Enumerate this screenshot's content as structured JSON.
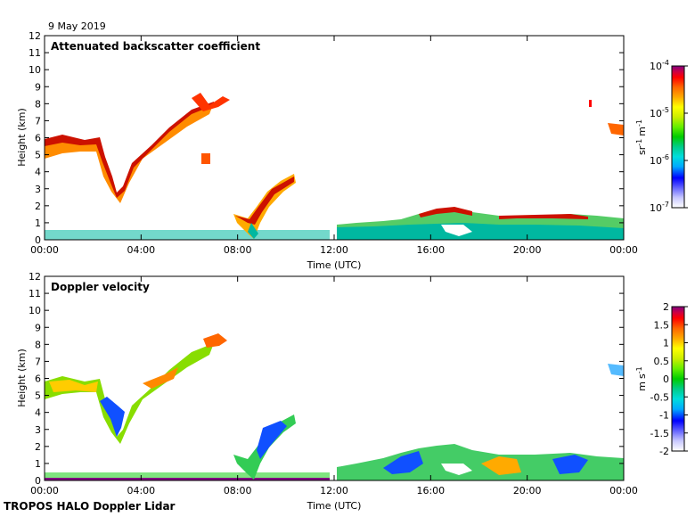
{
  "date_label": "9 May 2019",
  "footer_label": "TROPOS HALO Doppler Lidar",
  "colors": {
    "axis": "#000000",
    "background": "#ffffff"
  },
  "chart_data": [
    {
      "type": "heatmap",
      "title": "Attenuated backscatter coefficient",
      "xlabel": "Time (UTC)",
      "ylabel": "Height (km)",
      "x_ticks": [
        "00:00",
        "04:00",
        "08:00",
        "12:00",
        "16:00",
        "20:00",
        "00:00"
      ],
      "xlim_hours": [
        0,
        24
      ],
      "ylim": [
        0,
        12
      ],
      "y_ticks": [
        "0",
        "1",
        "2",
        "3",
        "4",
        "5",
        "6",
        "7",
        "8",
        "9",
        "10",
        "11",
        "12"
      ],
      "colorbar": {
        "scale": "log",
        "range": [
          1e-07,
          0.0001
        ],
        "tick_mantissa": [
          "10",
          "10",
          "10",
          "10"
        ],
        "tick_exponent": [
          "-7",
          "-6",
          "-5",
          "-4"
        ],
        "unit_main": [
          "sr",
          "m"
        ],
        "unit_sup": [
          "-1",
          "-1"
        ],
        "colors": [
          "#ffffff",
          "#c8c8ff",
          "#6464ff",
          "#0000ff",
          "#00aaff",
          "#00dddd",
          "#00cc88",
          "#00cc00",
          "#66ee00",
          "#ccee00",
          "#ffff00",
          "#ffaa00",
          "#ff6600",
          "#ff0000",
          "#cc0044",
          "#800080"
        ]
      },
      "features": [
        {
          "name": "elevated layer",
          "t": [
            0.0,
            0.5,
            1.0,
            2.0,
            2.5,
            3.0,
            3.5,
            4.0,
            5.0,
            6.0,
            7.0,
            7.5
          ],
          "h": [
            5.8,
            5.7,
            5.5,
            5.5,
            4.5,
            3.0,
            3.5,
            5.0,
            6.0,
            7.0,
            7.8,
            8.4
          ]
        },
        {
          "name": "late aerosol",
          "t": [
            8.3,
            9.0,
            9.5,
            10.0,
            10.3
          ],
          "h": [
            1.2,
            0.8,
            2.0,
            3.0,
            3.6
          ]
        },
        {
          "name": "boundary layer",
          "t": [
            12.0,
            14.0,
            16.0,
            17.0,
            18.0,
            20.0,
            22.0,
            24.0
          ],
          "h": [
            1.0,
            1.3,
            1.6,
            1.9,
            1.5,
            1.4,
            1.5,
            1.2
          ]
        }
      ]
    },
    {
      "type": "heatmap",
      "title": "Doppler velocity",
      "xlabel": "Time (UTC)",
      "ylabel": "Height (km)",
      "x_ticks": [
        "00:00",
        "04:00",
        "08:00",
        "12:00",
        "16:00",
        "20:00",
        "00:00"
      ],
      "xlim_hours": [
        0,
        24
      ],
      "ylim": [
        0,
        12
      ],
      "y_ticks": [
        "0",
        "1",
        "2",
        "3",
        "4",
        "5",
        "6",
        "7",
        "8",
        "9",
        "10",
        "11",
        "12"
      ],
      "colorbar": {
        "scale": "linear",
        "range": [
          -2,
          2
        ],
        "ticks": [
          "2",
          "1.5",
          "1",
          "0.5",
          "0",
          "-0.5",
          "-1",
          "-1.5",
          "-2"
        ],
        "unit_main": [
          "m",
          "s"
        ],
        "unit_sup": [
          "",
          "-1"
        ],
        "colors": [
          "#ffffff",
          "#c8c8ff",
          "#6464ff",
          "#0000ff",
          "#00aaff",
          "#00dddd",
          "#00cc88",
          "#00cc00",
          "#66ee00",
          "#ccee00",
          "#ffff00",
          "#ffaa00",
          "#ff6600",
          "#ff0000",
          "#cc0044",
          "#800080"
        ]
      }
    }
  ]
}
